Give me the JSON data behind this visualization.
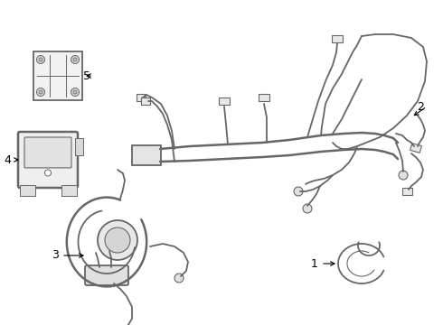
{
  "bg_color": "#ffffff",
  "line_color": "#666666",
  "label_color": "#000000",
  "lw": 1.3,
  "lw_thick": 1.8,
  "figsize": [
    4.9,
    3.6
  ],
  "dpi": 100
}
